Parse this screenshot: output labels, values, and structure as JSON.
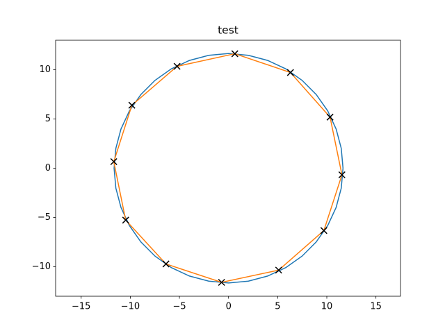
{
  "chart_data": {
    "type": "line",
    "title": "test",
    "xlim": [
      -17.6,
      17.5
    ],
    "ylim": [
      -13.0,
      13.0
    ],
    "xticks": [
      {
        "value": -15,
        "label": "−15"
      },
      {
        "value": -10,
        "label": "−10"
      },
      {
        "value": -5,
        "label": "−5"
      },
      0,
      5,
      10,
      15
    ],
    "yticks": [
      {
        "value": -10,
        "label": "−10"
      },
      {
        "value": -5,
        "label": "−5"
      },
      0,
      5,
      10
    ],
    "grid": false,
    "series": [
      {
        "color": "#1f77b4",
        "line": true,
        "marker": null,
        "x": [
          11.65,
          11.47,
          10.95,
          10.09,
          8.92,
          7.49,
          5.83,
          3.98,
          2.02,
          0,
          -2.02,
          -3.98,
          -5.83,
          -7.49,
          -8.92,
          -10.09,
          -10.95,
          -11.47,
          -11.65,
          -11.47,
          -10.95,
          -10.09,
          -8.92,
          -7.49,
          -5.83,
          -3.98,
          -2.02,
          0,
          2.02,
          3.98,
          5.83,
          7.49,
          8.92,
          10.09,
          10.95,
          11.47,
          11.65
        ],
        "values": [
          0,
          2.02,
          3.98,
          5.83,
          7.49,
          8.92,
          10.09,
          10.95,
          11.47,
          11.65,
          11.47,
          10.95,
          10.09,
          8.92,
          7.49,
          5.83,
          3.98,
          2.02,
          0,
          -2.02,
          -3.98,
          -5.83,
          -7.49,
          -8.92,
          -10.09,
          -10.95,
          -11.47,
          -11.65,
          -11.47,
          -10.95,
          -10.09,
          -8.92,
          -7.49,
          -5.83,
          -3.98,
          -2.02,
          0
        ]
      },
      {
        "color": "#ff7f0e",
        "line": true,
        "marker": null,
        "x": [
          0.64,
          6.3,
          10.33,
          11.54,
          9.7,
          5.1,
          -0.71,
          -6.37,
          -10.47,
          -11.68,
          -9.84,
          -5.24,
          0.64
        ],
        "values": [
          11.63,
          9.72,
          5.19,
          -0.67,
          -6.33,
          -10.35,
          -11.59,
          -9.72,
          -5.27,
          0.67,
          6.4,
          10.35,
          11.63
        ]
      },
      {
        "color": "#000000",
        "line": false,
        "marker": "x",
        "x": [
          0.64,
          6.3,
          10.33,
          11.54,
          9.7,
          5.1,
          -0.71,
          -6.37,
          -10.47,
          -11.68,
          -9.84,
          -5.24
        ],
        "values": [
          11.63,
          9.72,
          5.19,
          -0.67,
          -6.33,
          -10.35,
          -11.59,
          -9.72,
          -5.27,
          0.67,
          6.4,
          10.35
        ]
      }
    ]
  }
}
